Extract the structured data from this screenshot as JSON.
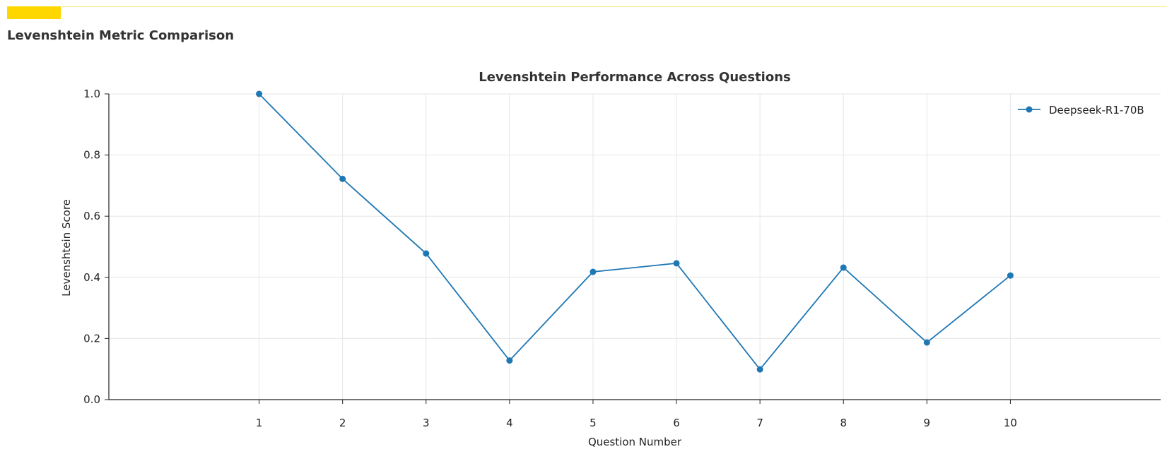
{
  "header": {
    "title": "Levenshtein Metric Comparison",
    "accent_color": "#FFD700"
  },
  "chart_data": {
    "type": "line",
    "title": "Levenshtein Performance Across Questions",
    "xlabel": "Question Number",
    "ylabel": "Levenshtein Score",
    "x": [
      1,
      2,
      3,
      4,
      5,
      6,
      7,
      8,
      9,
      10
    ],
    "xlim": [
      -0.8,
      11.8
    ],
    "ylim": [
      0,
      1.0
    ],
    "yticks": [
      0.0,
      0.2,
      0.4,
      0.6,
      0.8,
      1.0
    ],
    "ytick_labels": [
      "0.0",
      "0.2",
      "0.4",
      "0.6",
      "0.8",
      "1.0"
    ],
    "xtick_labels": [
      "1",
      "2",
      "3",
      "4",
      "5",
      "6",
      "7",
      "8",
      "9",
      "10"
    ],
    "grid": true,
    "legend_position": "top-right",
    "series": [
      {
        "name": "Deepseek-R1-70B",
        "color": "#1f77b4",
        "values": [
          1.0,
          0.722,
          0.478,
          0.128,
          0.418,
          0.446,
          0.099,
          0.432,
          0.187,
          0.406
        ]
      }
    ]
  }
}
